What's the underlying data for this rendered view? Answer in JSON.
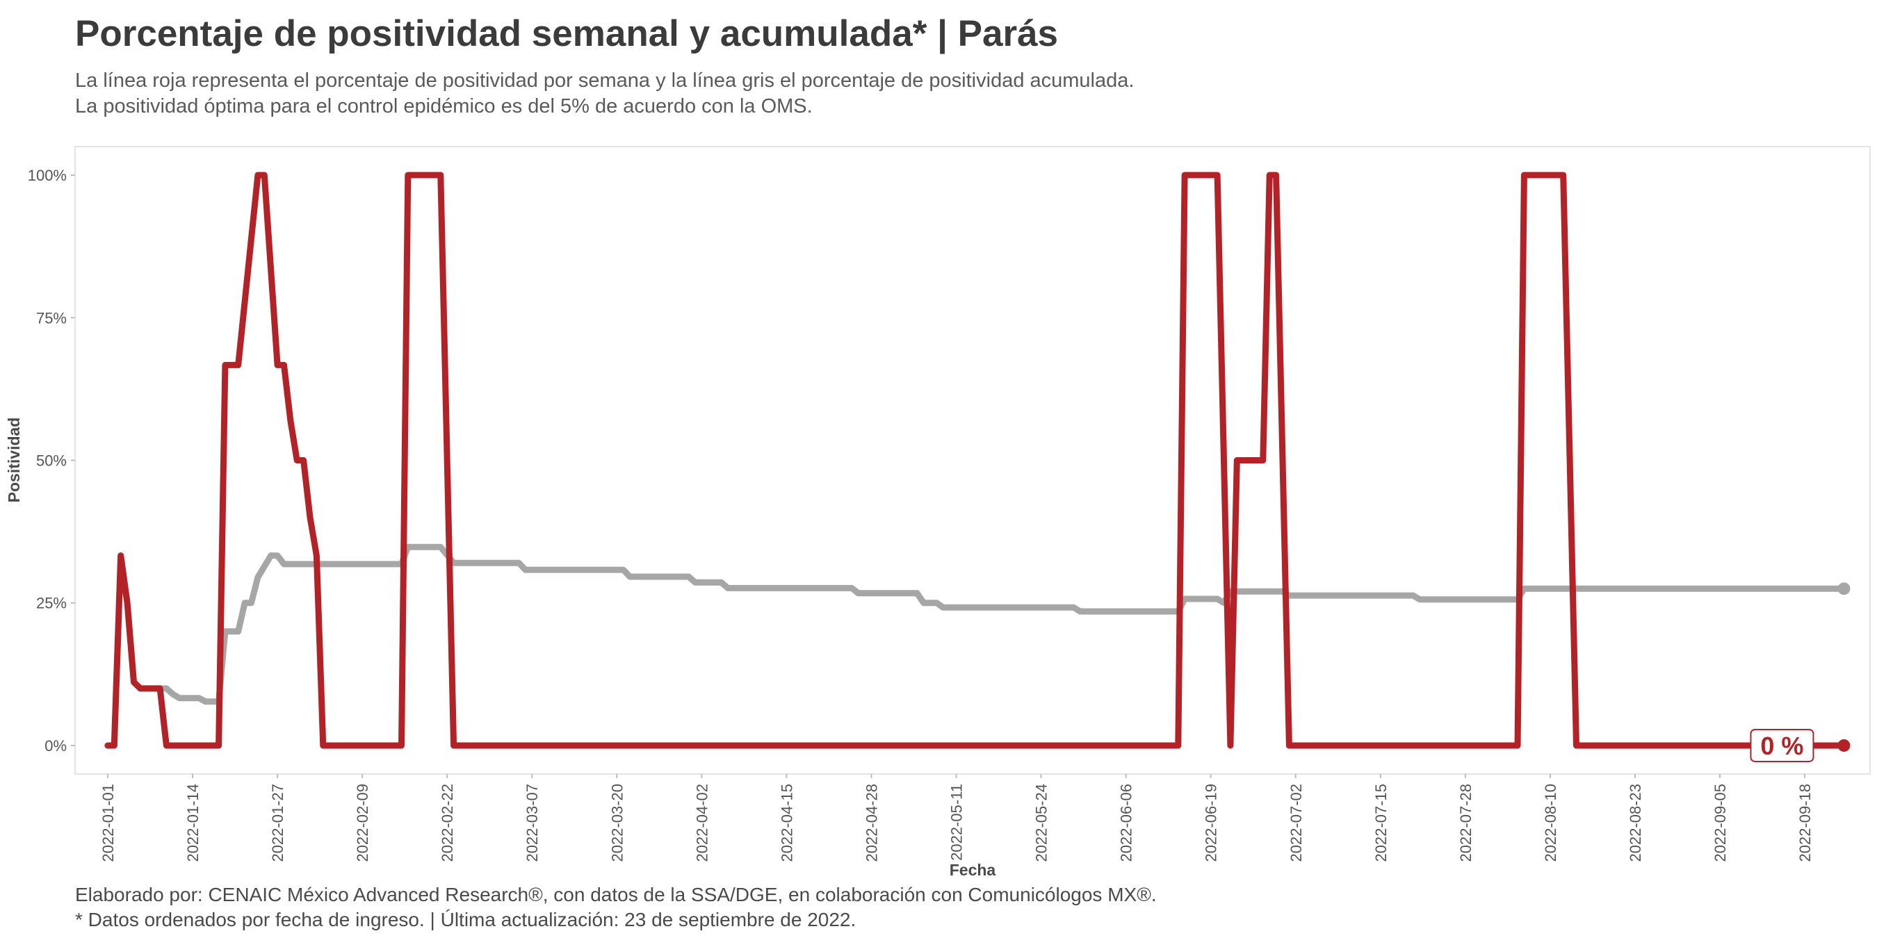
{
  "chart_data": {
    "type": "line",
    "title": "Porcentaje de positividad semanal y acumulada* | Parás",
    "subtitle_lines": [
      "La línea roja representa el porcentaje de positividad por semana y la línea gris el porcentaje de positividad acumulada.",
      "La positividad óptima para el control epidémico es del 5% de acuerdo con la OMS."
    ],
    "xlabel": "Fecha",
    "ylabel": "Positividad",
    "x_ticks": [
      "2022-01-01",
      "2022-01-14",
      "2022-01-27",
      "2022-02-09",
      "2022-02-22",
      "2022-03-07",
      "2022-03-20",
      "2022-04-02",
      "2022-04-15",
      "2022-04-28",
      "2022-05-11",
      "2022-05-24",
      "2022-06-06",
      "2022-06-19",
      "2022-07-02",
      "2022-07-15",
      "2022-07-28",
      "2022-08-10",
      "2022-08-23",
      "2022-09-05",
      "2022-09-18"
    ],
    "y_ticks": [
      "0%",
      "25%",
      "50%",
      "75%",
      "100%"
    ],
    "ylim": [
      -5,
      105
    ],
    "xlim": [
      "2021-12-27",
      "2022-09-28"
    ],
    "grid": false,
    "end_label": "0 %",
    "colors": {
      "weekly": "#b22226",
      "cumulative": "#a6a6a6"
    },
    "series": [
      {
        "key": "weekly",
        "points": [
          [
            "2022-01-01",
            0
          ],
          [
            "2022-01-02",
            0
          ],
          [
            "2022-01-03",
            33.3
          ],
          [
            "2022-01-04",
            25
          ],
          [
            "2022-01-05",
            11.1
          ],
          [
            "2022-01-06",
            10
          ],
          [
            "2022-01-08",
            10
          ],
          [
            "2022-01-09",
            10
          ],
          [
            "2022-01-10",
            0
          ],
          [
            "2022-01-18",
            0
          ],
          [
            "2022-01-19",
            66.7
          ],
          [
            "2022-01-21",
            66.7
          ],
          [
            "2022-01-24",
            100
          ],
          [
            "2022-01-25",
            100
          ],
          [
            "2022-01-27",
            66.7
          ],
          [
            "2022-01-28",
            66.7
          ],
          [
            "2022-01-29",
            57
          ],
          [
            "2022-01-30",
            50
          ],
          [
            "2022-01-31",
            50
          ],
          [
            "2022-02-01",
            40
          ],
          [
            "2022-02-02",
            33.3
          ],
          [
            "2022-02-03",
            0
          ],
          [
            "2022-02-15",
            0
          ],
          [
            "2022-02-16",
            100
          ],
          [
            "2022-02-21",
            100
          ],
          [
            "2022-02-23",
            0
          ],
          [
            "2022-06-14",
            0
          ],
          [
            "2022-06-15",
            100
          ],
          [
            "2022-06-20",
            100
          ],
          [
            "2022-06-22",
            0
          ],
          [
            "2022-06-23",
            50
          ],
          [
            "2022-06-27",
            50
          ],
          [
            "2022-06-28",
            100
          ],
          [
            "2022-06-29",
            100
          ],
          [
            "2022-07-01",
            0
          ],
          [
            "2022-08-05",
            0
          ],
          [
            "2022-08-06",
            100
          ],
          [
            "2022-08-12",
            100
          ],
          [
            "2022-08-14",
            0
          ],
          [
            "2022-09-24",
            0
          ]
        ]
      },
      {
        "key": "cumulative",
        "points": [
          [
            "2022-01-01",
            0
          ],
          [
            "2022-01-02",
            0
          ],
          [
            "2022-01-03",
            33.3
          ],
          [
            "2022-01-04",
            25
          ],
          [
            "2022-01-05",
            11.1
          ],
          [
            "2022-01-06",
            10
          ],
          [
            "2022-01-10",
            10
          ],
          [
            "2022-01-11",
            9
          ],
          [
            "2022-01-12",
            8.3
          ],
          [
            "2022-01-15",
            8.3
          ],
          [
            "2022-01-16",
            7.7
          ],
          [
            "2022-01-18",
            7.7
          ],
          [
            "2022-01-19",
            20
          ],
          [
            "2022-01-21",
            20
          ],
          [
            "2022-01-22",
            25
          ],
          [
            "2022-01-23",
            25
          ],
          [
            "2022-01-24",
            29.5
          ],
          [
            "2022-01-26",
            33.3
          ],
          [
            "2022-01-27",
            33.3
          ],
          [
            "2022-01-28",
            31.8
          ],
          [
            "2022-02-15",
            31.8
          ],
          [
            "2022-02-16",
            34.8
          ],
          [
            "2022-02-21",
            34.8
          ],
          [
            "2022-02-23",
            32
          ],
          [
            "2022-03-05",
            32
          ],
          [
            "2022-03-06",
            30.8
          ],
          [
            "2022-03-21",
            30.8
          ],
          [
            "2022-03-22",
            29.6
          ],
          [
            "2022-03-31",
            29.6
          ],
          [
            "2022-04-01",
            28.6
          ],
          [
            "2022-04-05",
            28.6
          ],
          [
            "2022-04-06",
            27.6
          ],
          [
            "2022-04-25",
            27.6
          ],
          [
            "2022-04-26",
            26.7
          ],
          [
            "2022-05-05",
            26.7
          ],
          [
            "2022-05-06",
            25
          ],
          [
            "2022-05-08",
            25
          ],
          [
            "2022-05-09",
            24.2
          ],
          [
            "2022-05-29",
            24.2
          ],
          [
            "2022-05-30",
            23.5
          ],
          [
            "2022-06-14",
            23.5
          ],
          [
            "2022-06-15",
            25.7
          ],
          [
            "2022-06-20",
            25.7
          ],
          [
            "2022-06-21",
            25
          ],
          [
            "2022-06-22",
            27
          ],
          [
            "2022-06-30",
            27
          ],
          [
            "2022-07-01",
            26.3
          ],
          [
            "2022-07-20",
            26.3
          ],
          [
            "2022-07-21",
            25.6
          ],
          [
            "2022-08-05",
            25.6
          ],
          [
            "2022-08-06",
            27.5
          ],
          [
            "2022-09-24",
            27.5
          ]
        ]
      }
    ]
  },
  "caption_lines": [
    "Elaborado por: CENAIC México Advanced Research®, con datos de la SSA/DGE, en colaboración con Comunicólogos MX®.",
    "* Datos ordenados por fecha de ingreso. | Última actualización: 23 de septiembre de 2022."
  ]
}
